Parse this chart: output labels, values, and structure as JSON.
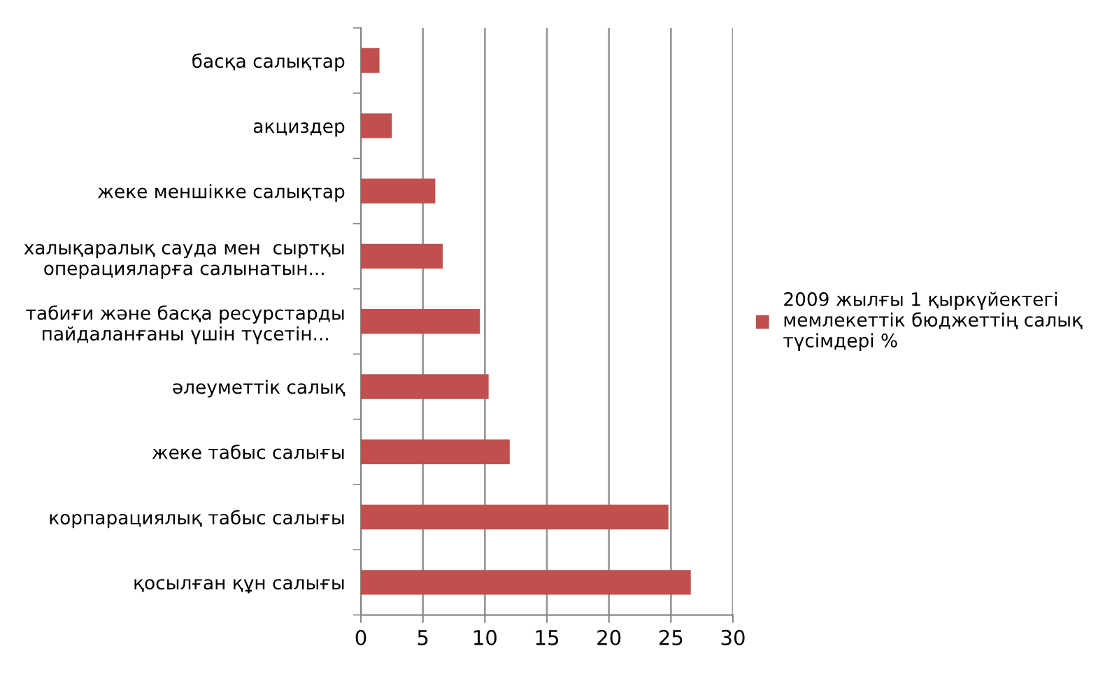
{
  "chart_data": {
    "type": "bar",
    "orientation": "horizontal",
    "categories": [
      "басқа салықтар",
      "акциздер",
      "жеке меншікке салықтар",
      "халықаралық сауда мен  сыртқы\nоперацияларға салынатын...",
      "табиғи және басқа ресурстарды\nпайдаланғаны үшін түсетін...",
      "әлеуметтік салық",
      "жеке табыс салығы",
      "корпарациялық табыс салығы",
      "қосылған құн салығы"
    ],
    "series": [
      {
        "name": "2009 жылғы 1 қыркүйектегі\nмемлекеттік бюджеттің салық\nтүсімдері %",
        "color": "#c0504d",
        "values": [
          1.5,
          2.5,
          6.0,
          6.6,
          9.6,
          10.3,
          12.0,
          24.8,
          26.6
        ]
      }
    ],
    "xlim": [
      0,
      30
    ],
    "xticks": [
      0,
      5,
      10,
      15,
      20,
      25,
      30
    ],
    "grid": "x",
    "legend": "right"
  }
}
